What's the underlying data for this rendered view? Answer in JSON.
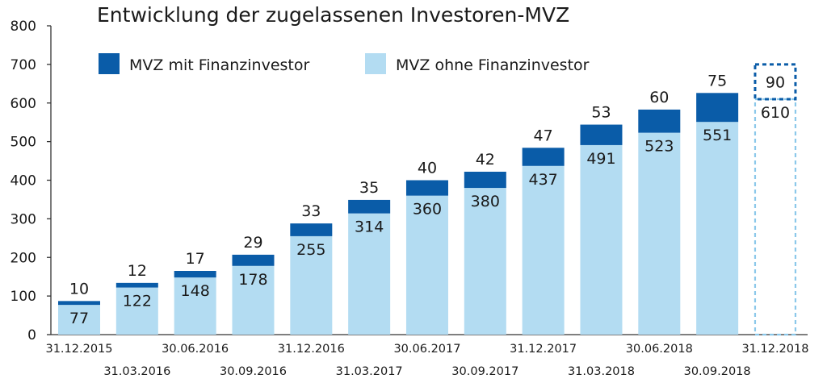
{
  "chart_data": {
    "type": "bar",
    "stacked": true,
    "title": "Entwicklung der zugelassenen Investoren-MVZ",
    "categories": [
      "31.12.2015",
      "31.03.2016",
      "30.06.2016",
      "30.09.2016",
      "31.12.2016",
      "31.03.2017",
      "30.06.2017",
      "30.09.2017",
      "31.12.2017",
      "31.03.2018",
      "30.06.2018",
      "30.09.2018",
      "31.12.2018"
    ],
    "series": [
      {
        "name": "MVZ ohne Finanzinvestor",
        "color": "#b3dcf2",
        "values": [
          77,
          122,
          148,
          178,
          255,
          314,
          360,
          380,
          437,
          491,
          523,
          551,
          610
        ]
      },
      {
        "name": "MVZ mit Finanzinvestor",
        "color": "#0a5ca8",
        "values": [
          10,
          12,
          17,
          29,
          33,
          35,
          40,
          42,
          47,
          53,
          60,
          75,
          90
        ]
      }
    ],
    "projected_category": "31.12.2018",
    "ylim": [
      0,
      800
    ],
    "yticks": [
      0,
      100,
      200,
      300,
      400,
      500,
      600,
      700,
      800
    ],
    "legend_position": "top-left",
    "grid": false
  }
}
